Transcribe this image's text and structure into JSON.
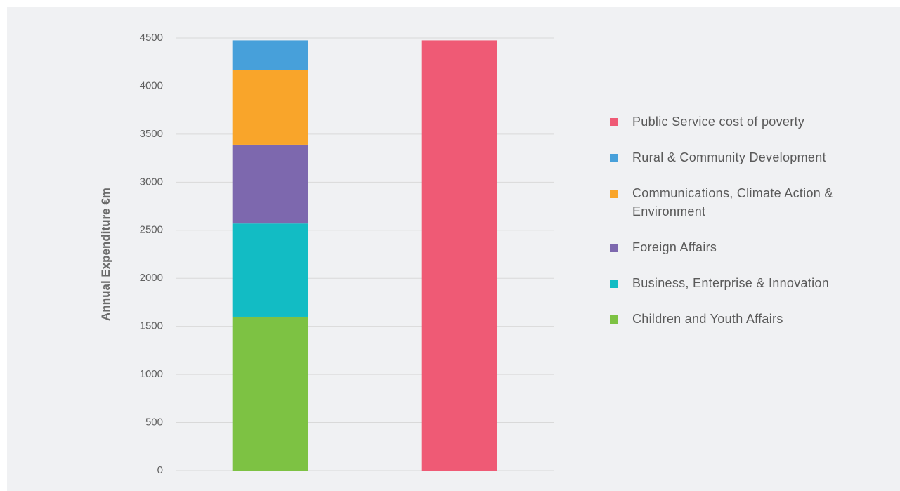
{
  "chart_data": {
    "type": "stacked_bar",
    "y_label": "Annual Expenditure  €m",
    "categories": [
      null,
      null
    ],
    "series": [
      {
        "name": "Children and Youth Affairs",
        "color": "#7dc243",
        "values": [
          1600,
          null
        ]
      },
      {
        "name": "Business, Enterprise & Innovation",
        "color": "#12bcc4",
        "values": [
          970,
          null
        ]
      },
      {
        "name": "Foreign Affairs",
        "color": "#7d68ae",
        "values": [
          820,
          null
        ]
      },
      {
        "name": "Communications, Climate Action & Environment",
        "color": "#f9a52a",
        "values": [
          775,
          null
        ]
      },
      {
        "name": "Rural & Community Development",
        "color": "#47a0da",
        "values": [
          310,
          null
        ]
      },
      {
        "name": "Public Service cost of poverty",
        "color": "#ef5a75",
        "values": [
          null,
          4475
        ]
      }
    ],
    "ylim": [
      0,
      4500
    ],
    "yticks": [
      0,
      500,
      1000,
      1500,
      2000,
      2500,
      3000,
      3500,
      4000,
      4500
    ],
    "grid": true,
    "legend": "right"
  }
}
